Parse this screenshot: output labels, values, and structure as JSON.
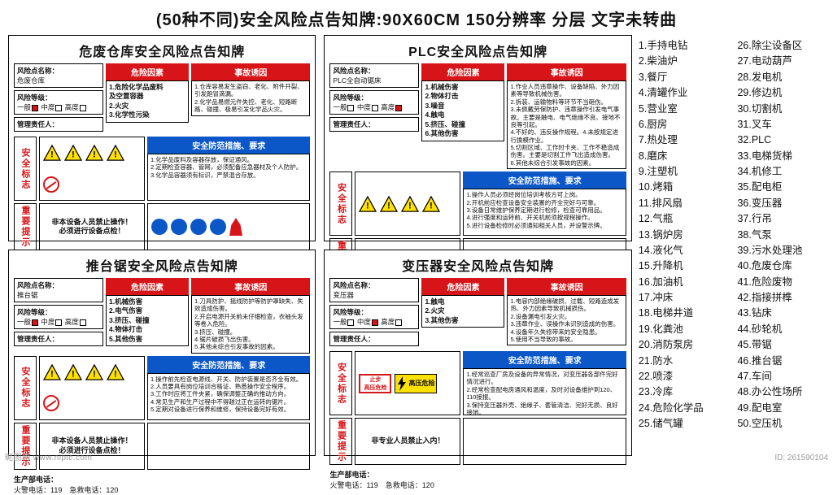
{
  "page_title": "(50种不同)安全风险点告知牌:90X60CM 150分辨率 分层 文字未转曲",
  "colors": {
    "red": "#d71518",
    "blue": "#0b57c8",
    "yellow_warn": "#ffe100",
    "black": "#000000",
    "white": "#ffffff"
  },
  "labels": {
    "risk_point_name": "风险点名称：",
    "risk_level": "风险等级：",
    "levels": [
      "一般",
      "中度",
      "高度"
    ],
    "manager": "管理责任人：",
    "risk_factor_hdr": "危险因素",
    "accident_cause_hdr": "事故诱因",
    "safety_sign": "安全标志",
    "important_note": "重要提示",
    "safety_measure_hdr": "安全防范措施、要求",
    "prod_phone": "生产部电话：",
    "fire_phone": "火警电话：119",
    "rescue_phone": "急救电话：120",
    "stop_line1": "止步",
    "stop_line2": "高压危险"
  },
  "cards": [
    {
      "title": "危废仓库安全风险点告知牌",
      "risk_name": "危废仓库",
      "level_checked": 0,
      "risk_factors": "1.危险化学品废料\n及空置容器\n2.火灾\n3.化学性污染",
      "accident_cause": "1.仓库容易发生盗窃、老化、附件开裂、引发跑冒滴漏。\n2.化学品易燃元件失控、老化、短路断路、碰撞、极易引发化学品火灾。",
      "note_lines": [
        "非本设备人员禁止操作！",
        "必须进行设备点检！"
      ],
      "measures": "1.化学品废料及容器存放，保证通风。\n2.定期检查容器、管网，必须配备应急器材及个人防护。\n3.化学品容器须有标识，严禁混合存放。",
      "icon_set": "hazmat"
    },
    {
      "title": "PLC安全风险点告知牌",
      "risk_name": "PLC全自动锯床",
      "level_checked": 2,
      "risk_factors": "1.机械伤害\n2.物体打击\n3.噪音\n4.触电\n5.挤压、碰撞\n6.其他伤害",
      "accident_cause": "1.作业人员违章操作、设备缺陷、外力因素等导致机械伤害。\n2.拆装、运输物料等环节不当砸伤。\n3.未佩戴劳保防护、违章操作引发电气事故。主要是触电、电气绝缘不良、接地不良等引起。\n4.不好的、违反操作规程。4.未按规定进行换模作业。\n5.切割区域、工作时卡夹、工作不稳造成伤害。主要是切割工件飞出造成伤害。\n6.其他未综合引发事故的因素。",
      "note_lines": [
        "非设备人员禁止操作!",
        "使用前必须进行设备点检!"
      ],
      "measures": "1.操作人员必须经岗位培训考核方可上岗。\n2.开机前应检查设备安全装置的齐全完好与可靠。\n3.设备日常维护保养定期进行检修，检查可靠用品。\n4.进行强度和运转前、开关机前须按规程操作。\n5.进行设备检修时必须通知相关人员，并设警示牌。",
      "icon_set": "plc"
    },
    {
      "title": "推台锯安全风险点告知牌",
      "risk_name": "推台锯",
      "level_checked": 0,
      "risk_factors": "1.机械伤害\n2.电气伤害\n3.挤压、碰撞\n4.物体打击\n5.其他伤害",
      "accident_cause": "1.刀具防护、摇线防护等防护罩缺失、失效造成伤害。\n2.开启电源开关前未仔细检查，衣袖头发等卷入危险。\n3.挤压、碰撞。\n4.锯片破损飞出伤害。\n5.其他未综合引发事故的因素。",
      "note_lines": [
        "非本设备人员禁止操作！",
        "必须进行设备点检！"
      ],
      "measures": "1.操作前先检查电源线、开关、防护装置是否齐全有效。\n2.人员要具有岗位培训合格证、熟悉操作安全程序。\n3.工作时应将工件夹紧，确保调整正确的推动方向。\n4.常见生产和生产过程中不得越过正在运转的锯片。\n5.定期对设备进行保养和维修，保持设备完好有效。",
      "icon_set": "saw"
    },
    {
      "title": "变压器安全风险点告知牌",
      "risk_name": "变压器",
      "level_checked": 1,
      "risk_factors": "1.触电\n2.火灾\n3.其他伤害",
      "accident_cause": "1.电容内部绝缘破损、过载、短路造成发热、外力因素导致机械损伤。\n2.设备漏电引发火灾。\n3.违章作业、误操作未识别造成的伤害。\n4.设备年久失修带来的安全隐患。\n5.使用不当导致的事故。",
      "note_lines": [
        "非专业人员禁止入内！"
      ],
      "measures": "1.经常巡查厂房及设备的异常情况，对变压器各部件完好情况进行。\n2.经常检查配电房通风和温度，及时对设备维护到120、110接报。\n3.保持变压器外壳、绝缘子、套管清洁、完好无损、良好接地。\n4.加强日常维护保养，严禁超负荷运行变压器。\n5.配电间门必须上锁，非专业人员不得入内。",
      "icon_set": "transformer"
    }
  ],
  "sidebar_left": [
    "1.手持电钻",
    "2.柴油炉",
    "3.餐厅",
    "4.清罐作业",
    "5.营业室",
    "6.厨房",
    "7.热处理",
    "8.磨床",
    "9.注塑机",
    "10.烤箱",
    "11.排风扇",
    "12.气瓶",
    "13.锅炉房",
    "14.液化气",
    "15.升降机",
    "16.加油机",
    "17.冲床",
    "18.电梯井道",
    "19.化粪池",
    "20.消防泵房",
    "21.防水",
    "22.喷漆",
    "23.冷库",
    "24.危险化学品",
    "25.储气罐"
  ],
  "sidebar_right": [
    "26.除尘设备区",
    "27.电动葫芦",
    "28.发电机",
    "29.修边机",
    "30.切割机",
    "31.叉车",
    "32.PLC",
    "33.电梯货梯",
    "34.机修工",
    "35.配电柜",
    "36.变压器",
    "37.行吊",
    "38.气泵",
    "39.污水处理池",
    "40.危废仓库",
    "41.危险废物",
    "42.指接拼榫",
    "43.钻床",
    "44.砂轮机",
    "45.带锯",
    "46.推台锯",
    "47.车间",
    "48.办公性场所",
    "49.配电室",
    "50.空压机"
  ],
  "watermark": "昵图网  www.nipic.com",
  "image_id": "ID: 261590104"
}
